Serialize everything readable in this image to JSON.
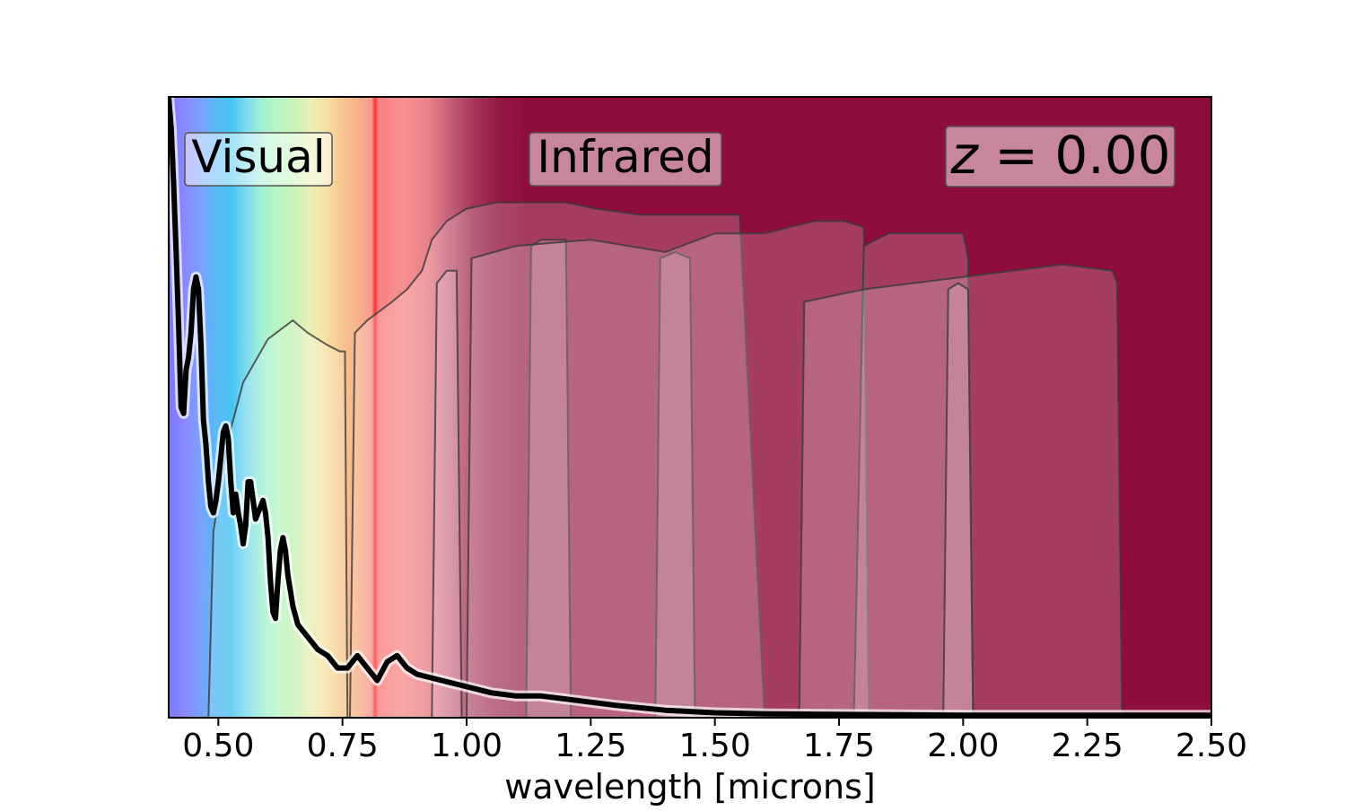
{
  "chart_data": {
    "type": "line",
    "title": "",
    "xlabel": "wavelength [microns]",
    "ylabel": "",
    "xlim": [
      0.4,
      2.5
    ],
    "ylim": [
      0,
      1.0
    ],
    "x_ticks": [
      0.5,
      0.75,
      1.0,
      1.25,
      1.5,
      1.75,
      2.0,
      2.25,
      2.5
    ],
    "x_tick_labels": [
      "0.50",
      "0.75",
      "1.00",
      "1.25",
      "1.50",
      "1.75",
      "2.00",
      "2.25",
      "2.50"
    ],
    "y_ticks_visible": false,
    "grid": false,
    "annotations": {
      "visual_label": "Visual",
      "infrared_label": "Infrared",
      "redshift_label": "z = 0.00",
      "redshift_var": "z",
      "redshift_rest": " = 0.00"
    },
    "background": {
      "description": "spectral color gradient: violet-blue-cyan-green-yellow-orange-red through the visual range, then dark crimson in the infrared",
      "infrared_color": "#8f0d3c"
    },
    "filters": [
      {
        "name": "visual-band",
        "x": [
          0.48,
          0.49,
          0.52,
          0.55,
          0.6,
          0.65,
          0.68,
          0.72,
          0.745,
          0.755,
          0.76
        ],
        "y": [
          0.0,
          0.3,
          0.45,
          0.54,
          0.61,
          0.64,
          0.62,
          0.6,
          0.59,
          0.59,
          0.0
        ]
      },
      {
        "name": "z-band",
        "x": [
          0.765,
          0.775,
          0.8,
          0.85,
          0.88,
          0.91,
          0.93,
          0.96,
          1.0,
          1.06,
          1.12,
          1.2,
          1.26,
          1.35,
          1.4,
          1.5,
          1.55,
          1.6
        ],
        "y": [
          0.0,
          0.62,
          0.64,
          0.67,
          0.69,
          0.72,
          0.77,
          0.8,
          0.82,
          0.83,
          0.83,
          0.83,
          0.82,
          0.81,
          0.81,
          0.81,
          0.81,
          0.0
        ]
      },
      {
        "name": "Y-band",
        "x": [
          0.93,
          0.94,
          0.96,
          0.98,
          0.99
        ],
        "y": [
          0.0,
          0.7,
          0.72,
          0.72,
          0.0
        ]
      },
      {
        "name": "J-band",
        "x": [
          1.12,
          1.13,
          1.15,
          1.2,
          1.21
        ],
        "y": [
          0.0,
          0.76,
          0.77,
          0.77,
          0.0
        ]
      },
      {
        "name": "narrow-band-1.4",
        "x": [
          1.38,
          1.39,
          1.42,
          1.45,
          1.46
        ],
        "y": [
          0.0,
          0.74,
          0.75,
          0.74,
          0.0
        ]
      },
      {
        "name": "H-band",
        "x": [
          1.0,
          1.01,
          1.1,
          1.25,
          1.4,
          1.5,
          1.6,
          1.7,
          1.76,
          1.8,
          1.81
        ],
        "y": [
          0.0,
          0.74,
          0.76,
          0.77,
          0.75,
          0.78,
          0.78,
          0.8,
          0.8,
          0.79,
          0.0
        ]
      },
      {
        "name": "K-band",
        "x": [
          1.78,
          1.8,
          1.85,
          1.9,
          2.0,
          2.01,
          2.02
        ],
        "y": [
          0.0,
          0.76,
          0.78,
          0.78,
          0.78,
          0.74,
          0.0
        ]
      },
      {
        "name": "Ks-wide-band",
        "x": [
          1.67,
          1.68,
          1.8,
          1.9,
          2.0,
          2.1,
          2.2,
          2.3,
          2.31,
          2.32
        ],
        "y": [
          0.0,
          0.67,
          0.69,
          0.7,
          0.71,
          0.72,
          0.73,
          0.72,
          0.7,
          0.0
        ]
      },
      {
        "name": "narrow-band-2.0",
        "x": [
          1.96,
          1.97,
          1.99,
          2.01,
          2.02
        ],
        "y": [
          0.0,
          0.69,
          0.7,
          0.69,
          0.0
        ]
      }
    ],
    "series": [
      {
        "name": "spectrum",
        "x": [
          0.4,
          0.405,
          0.41,
          0.415,
          0.42,
          0.425,
          0.43,
          0.435,
          0.44,
          0.445,
          0.45,
          0.455,
          0.46,
          0.465,
          0.47,
          0.475,
          0.48,
          0.485,
          0.49,
          0.495,
          0.5,
          0.505,
          0.51,
          0.515,
          0.52,
          0.525,
          0.53,
          0.535,
          0.54,
          0.545,
          0.55,
          0.555,
          0.56,
          0.565,
          0.57,
          0.575,
          0.58,
          0.585,
          0.59,
          0.595,
          0.6,
          0.605,
          0.61,
          0.615,
          0.62,
          0.625,
          0.63,
          0.635,
          0.64,
          0.65,
          0.66,
          0.68,
          0.7,
          0.72,
          0.74,
          0.75,
          0.76,
          0.78,
          0.8,
          0.82,
          0.84,
          0.86,
          0.88,
          0.9,
          0.95,
          1.0,
          1.05,
          1.1,
          1.15,
          1.2,
          1.3,
          1.4,
          1.5,
          1.6,
          1.8,
          2.0,
          2.2,
          2.5
        ],
        "y": [
          1.0,
          0.95,
          0.86,
          0.75,
          0.63,
          0.5,
          0.49,
          0.56,
          0.58,
          0.62,
          0.69,
          0.71,
          0.69,
          0.6,
          0.48,
          0.44,
          0.38,
          0.34,
          0.33,
          0.35,
          0.38,
          0.42,
          0.46,
          0.47,
          0.45,
          0.38,
          0.33,
          0.36,
          0.33,
          0.31,
          0.28,
          0.31,
          0.38,
          0.38,
          0.35,
          0.32,
          0.33,
          0.34,
          0.35,
          0.33,
          0.29,
          0.22,
          0.17,
          0.16,
          0.22,
          0.27,
          0.29,
          0.27,
          0.23,
          0.18,
          0.15,
          0.13,
          0.11,
          0.1,
          0.08,
          0.08,
          0.08,
          0.1,
          0.08,
          0.06,
          0.09,
          0.1,
          0.08,
          0.07,
          0.06,
          0.05,
          0.04,
          0.035,
          0.035,
          0.03,
          0.02,
          0.012,
          0.008,
          0.006,
          0.005,
          0.004,
          0.004,
          0.004
        ]
      }
    ]
  }
}
